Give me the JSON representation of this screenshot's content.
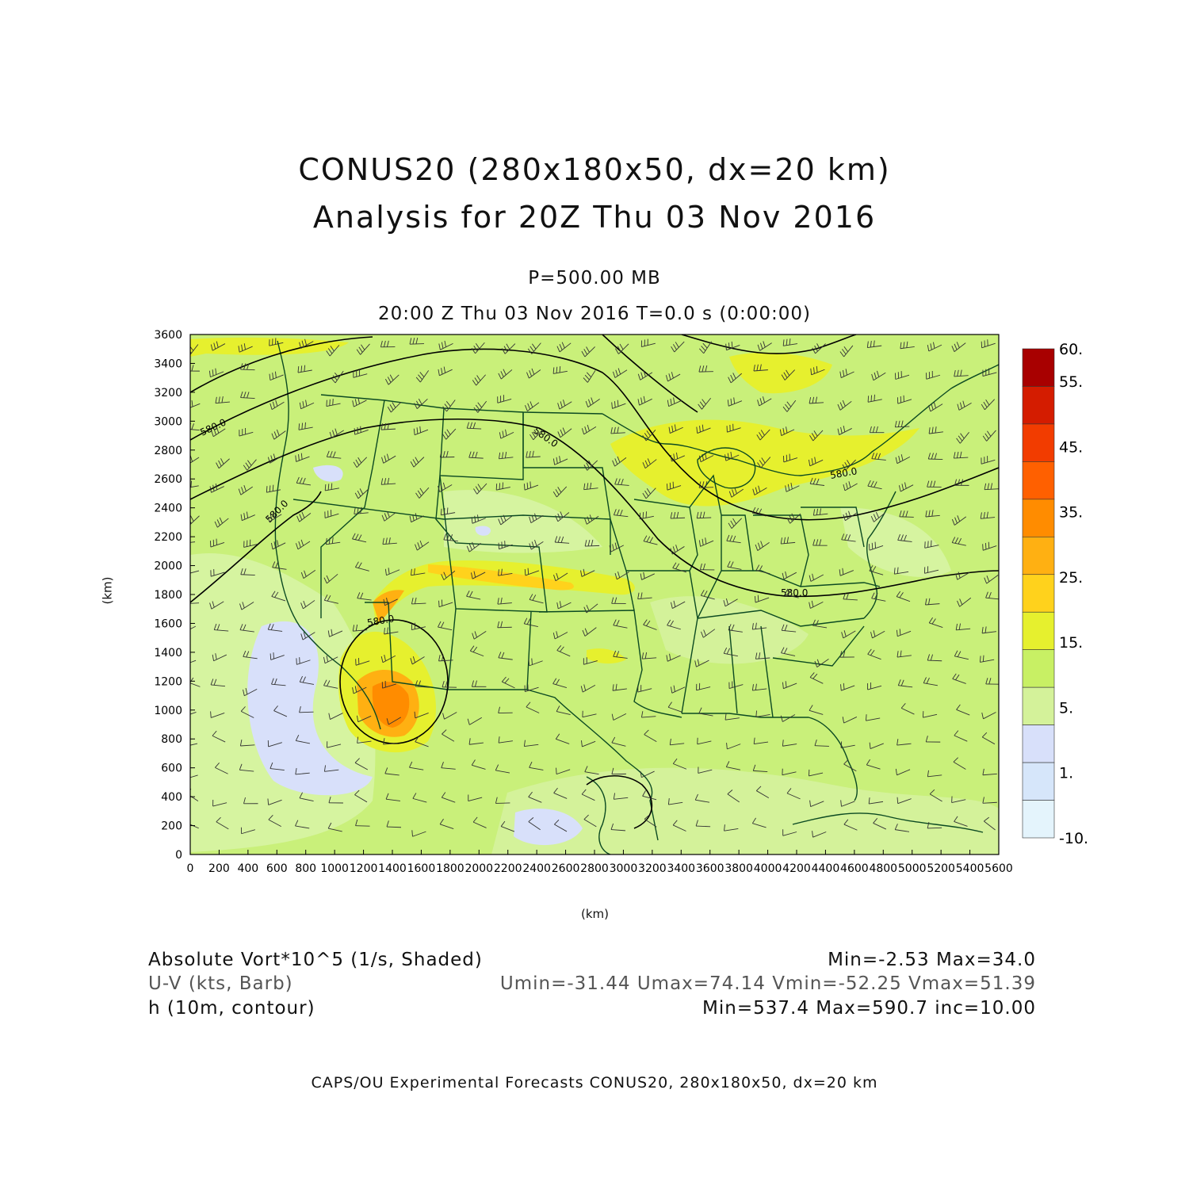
{
  "title": {
    "line1": "CONUS20 (280x180x50, dx=20 km)",
    "line2": "Analysis for 20Z Thu 03 Nov 2016"
  },
  "level_label": "P=500.00 MB",
  "time_label": "20:00 Z Thu 03 Nov 2016    T=0.0 s (0:00:00)",
  "axes": {
    "x_unit": "(km)",
    "y_unit": "(km)",
    "x_ticks": [
      "0",
      "200",
      "400",
      "600",
      "800",
      "1000",
      "1200",
      "1400",
      "1600",
      "1800",
      "2000",
      "2200",
      "2400",
      "2600",
      "2800",
      "3000",
      "3200",
      "3400",
      "3600",
      "3800",
      "4000",
      "4200",
      "4400",
      "4600",
      "4800",
      "5000",
      "5200",
      "5400",
      "5600"
    ],
    "y_ticks": [
      "0",
      "200",
      "400",
      "600",
      "800",
      "1000",
      "1200",
      "1400",
      "1600",
      "1800",
      "2000",
      "2200",
      "2400",
      "2600",
      "2800",
      "3000",
      "3200",
      "3400",
      "3600"
    ],
    "x_range_km": [
      0,
      5600
    ],
    "y_range_km": [
      0,
      3600
    ]
  },
  "colorbar": {
    "labels": [
      "60.",
      "55.",
      "45.",
      "35.",
      "25.",
      "15.",
      "5.",
      "1.",
      "-10."
    ],
    "colors": [
      "#a80000",
      "#d41c00",
      "#f23c00",
      "#ff6000",
      "#ff8c00",
      "#ffb012",
      "#ffd21c",
      "#e6f02e",
      "#c8f064",
      "#d4f29a",
      "#d8e0fa",
      "#d6e6fa",
      "#e4f4fc"
    ]
  },
  "contour_labels": [
    "580.0",
    "580.0",
    "580.0",
    "580.0",
    "580.0",
    "580.0"
  ],
  "colors": {
    "field_base": "#c9f07a",
    "boundaries": "#0c4a22",
    "contours": "#000000"
  },
  "legend": {
    "row1_left": "Absolute Vort*10^5 (1/s, Shaded)",
    "row1_right": "Min=-2.53 Max=34.0",
    "row2_left": "U-V (kts, Barb)",
    "row2_right": "Umin=-31.44 Umax=74.14 Vmin=-52.25 Vmax=51.39",
    "row3_left": "h (10m, contour)",
    "row3_right": "Min=537.4 Max=590.7 inc=10.00"
  },
  "footer": "CAPS/OU Experimental Forecasts  CONUS20, 280x180x50, dx=20 km"
}
